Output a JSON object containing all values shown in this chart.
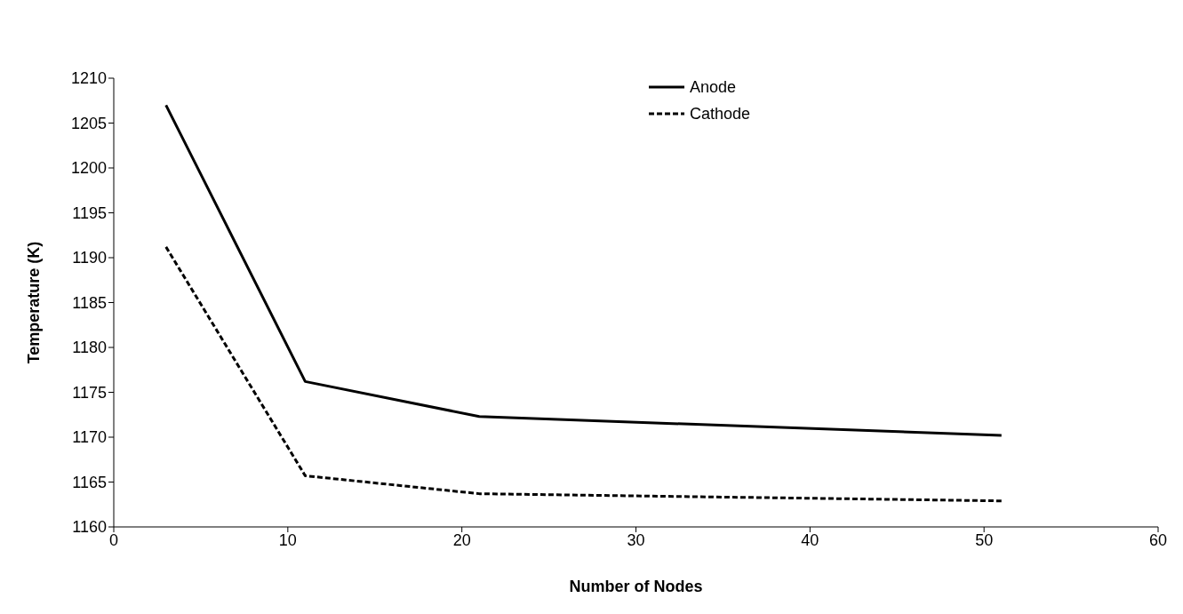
{
  "chart_data": {
    "type": "line",
    "xlabel": "Number of Nodes",
    "ylabel": "Temperature (K)",
    "x": [
      3,
      11,
      21,
      51
    ],
    "series": [
      {
        "name": "Anode",
        "color": "#000000",
        "line_style": "solid",
        "values": [
          1207,
          1176.2,
          1172.3,
          1170.2
        ]
      },
      {
        "name": "Cathode",
        "color": "#000000",
        "line_style": "dashed",
        "values": [
          1191.2,
          1165.7,
          1163.7,
          1162.9
        ]
      }
    ],
    "xlim": [
      0,
      60
    ],
    "xticks": [
      0,
      10,
      20,
      30,
      40,
      50,
      60
    ],
    "ylim": [
      1160,
      1210
    ],
    "yticks": [
      1160,
      1165,
      1170,
      1175,
      1180,
      1185,
      1190,
      1195,
      1200,
      1205,
      1210
    ],
    "grid": false,
    "legend": "top",
    "marker": "none"
  }
}
